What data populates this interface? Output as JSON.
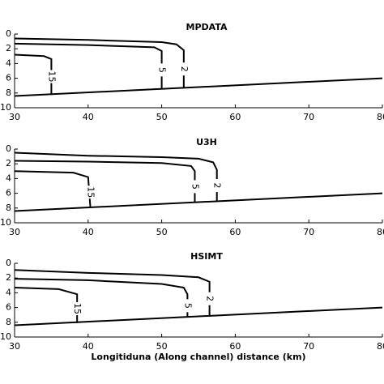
{
  "chart_data": [
    {
      "type": "line",
      "title": "MPDATA",
      "xlim": [
        30,
        80
      ],
      "ylim": [
        0,
        10
      ],
      "xticks": [
        30,
        40,
        50,
        60,
        70,
        80
      ],
      "yticks": [
        0,
        2,
        4,
        6,
        8,
        10
      ],
      "color": "#000000",
      "series": [
        {
          "name": "2",
          "x": [
            30,
            40,
            50,
            52,
            53,
            53
          ],
          "values": [
            0.6,
            0.8,
            1.1,
            1.4,
            2.2,
            7.3
          ]
        },
        {
          "name": "5",
          "x": [
            30,
            40,
            49,
            50,
            50
          ],
          "values": [
            1.3,
            1.5,
            1.8,
            2.3,
            7.45
          ]
        },
        {
          "name": "15",
          "x": [
            30,
            34,
            35,
            35
          ],
          "values": [
            2.8,
            3.0,
            3.4,
            8.15
          ]
        }
      ],
      "bed": {
        "x": [
          30,
          80
        ],
        "values": [
          8.4,
          6.0
        ]
      }
    },
    {
      "type": "line",
      "title": "U3H",
      "xlim": [
        30,
        80
      ],
      "ylim": [
        0,
        10
      ],
      "xticks": [
        30,
        40,
        50,
        60,
        70,
        80
      ],
      "yticks": [
        0,
        2,
        4,
        6,
        8,
        10
      ],
      "color": "#000000",
      "series": [
        {
          "name": "2",
          "x": [
            30,
            40,
            50,
            55,
            57,
            57.5,
            57.5
          ],
          "values": [
            0.5,
            0.9,
            1.1,
            1.3,
            1.8,
            2.8,
            7.1
          ]
        },
        {
          "name": "5",
          "x": [
            30,
            40,
            50,
            54,
            54.5,
            54.5
          ],
          "values": [
            1.6,
            1.7,
            1.9,
            2.3,
            3.0,
            7.2
          ]
        },
        {
          "name": "15",
          "x": [
            30,
            38,
            40,
            40.3
          ],
          "values": [
            3.0,
            3.2,
            3.8,
            7.9
          ]
        }
      ],
      "bed": {
        "x": [
          30,
          80
        ],
        "values": [
          8.4,
          6.0
        ]
      }
    },
    {
      "type": "line",
      "title": "HSIMT",
      "xlabel": "Longitiduna (Along channel) distance (km)",
      "xlim": [
        30,
        80
      ],
      "ylim": [
        0,
        10
      ],
      "xticks": [
        30,
        40,
        50,
        60,
        70,
        80
      ],
      "yticks": [
        0,
        2,
        4,
        6,
        8,
        10
      ],
      "color": "#000000",
      "series": [
        {
          "name": "2",
          "x": [
            30,
            40,
            50,
            55,
            56.5,
            56.5
          ],
          "values": [
            0.9,
            1.3,
            1.6,
            1.9,
            2.5,
            7.1
          ]
        },
        {
          "name": "5",
          "x": [
            30,
            40,
            50,
            53,
            53.5,
            53.5
          ],
          "values": [
            2.1,
            2.3,
            2.8,
            3.3,
            4.2,
            7.3
          ]
        },
        {
          "name": "15",
          "x": [
            30,
            36,
            38.5,
            38.5
          ],
          "values": [
            3.3,
            3.5,
            4.2,
            8.1
          ]
        }
      ],
      "bed": {
        "x": [
          30,
          80
        ],
        "values": [
          8.4,
          6.0
        ]
      }
    }
  ]
}
